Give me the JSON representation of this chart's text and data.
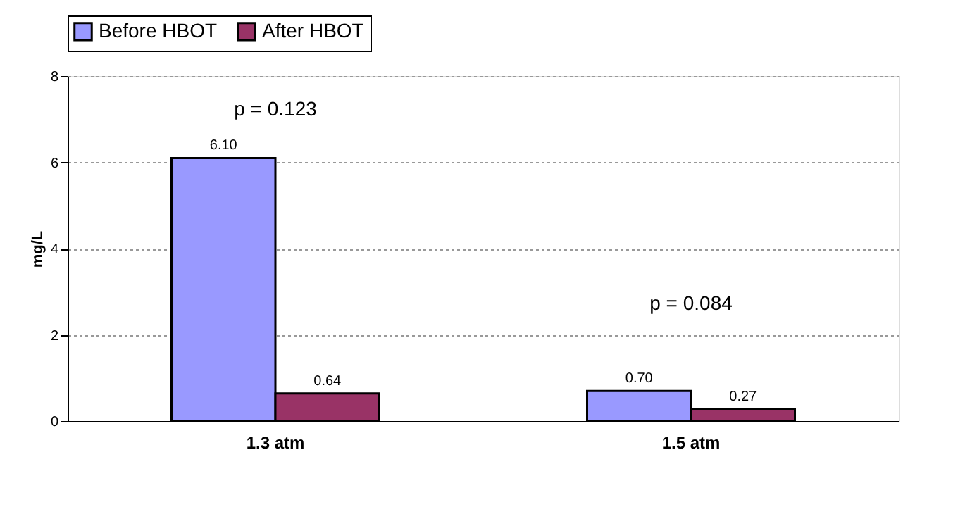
{
  "chart_data": {
    "type": "bar",
    "categories": [
      "1.3 atm",
      "1.5 atm"
    ],
    "series": [
      {
        "name": "Before HBOT",
        "color": "#9999ff",
        "values": [
          6.1,
          0.7
        ],
        "value_labels": [
          "6.10",
          "0.70"
        ]
      },
      {
        "name": "After HBOT",
        "color": "#993366",
        "values": [
          0.64,
          0.27
        ],
        "value_labels": [
          "0.64",
          "0.27"
        ]
      }
    ],
    "ylabel": "mg/L",
    "ylim": [
      0,
      8
    ],
    "yticks": [
      0,
      2,
      4,
      6,
      8
    ],
    "grid": "y",
    "legend": "top",
    "annotations": [
      "p = 0.123",
      "p = 0.084"
    ]
  }
}
